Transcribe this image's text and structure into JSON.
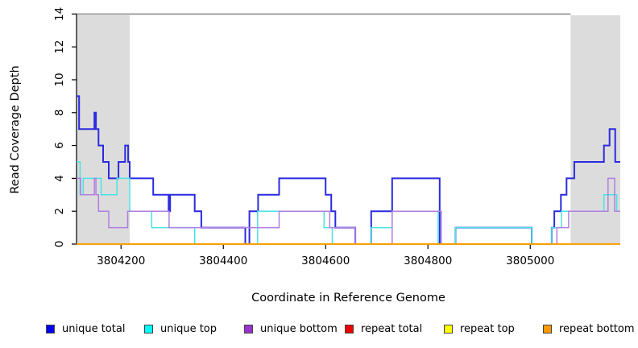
{
  "chart_data": {
    "type": "line",
    "subtype": "step-coverage",
    "title": "",
    "xlabel": "Coordinate in Reference Genome",
    "ylabel": "Read Coverage Depth",
    "xlim": [
      3804113,
      3805176
    ],
    "ylim": [
      0,
      14
    ],
    "xticks": [
      3804200,
      3804400,
      3804600,
      3804800,
      3805000
    ],
    "yticks": [
      0,
      2,
      4,
      6,
      8,
      10,
      12,
      14
    ],
    "grid": false,
    "legend_position": "bottom",
    "shade_color": "#dcdcdc",
    "shaded_regions": [
      {
        "x0": 3804113,
        "x1": 3804217
      },
      {
        "x0": 3805079,
        "x1": 3805176
      }
    ],
    "top_rule": {
      "y": 14,
      "x0": 3804113,
      "x1": 3805079,
      "color": "#8c8c8c"
    },
    "series": [
      {
        "name": "unique total",
        "color": "#2b2be0",
        "width": 2,
        "steps": [
          [
            3804113,
            9
          ],
          [
            3804118,
            7
          ],
          [
            3804148,
            8
          ],
          [
            3804151,
            7
          ],
          [
            3804156,
            6
          ],
          [
            3804165,
            5
          ],
          [
            3804176,
            4
          ],
          [
            3804195,
            5
          ],
          [
            3804208,
            6
          ],
          [
            3804214,
            5
          ],
          [
            3804217,
            4
          ],
          [
            3804263,
            3
          ],
          [
            3804293,
            2
          ],
          [
            3804296,
            3
          ],
          [
            3804344,
            2
          ],
          [
            3804357,
            1
          ],
          [
            3804443,
            0
          ],
          [
            3804451,
            2
          ],
          [
            3804468,
            3
          ],
          [
            3804509,
            4
          ],
          [
            3804600,
            3
          ],
          [
            3804611,
            2
          ],
          [
            3804619,
            1
          ],
          [
            3804658,
            0
          ],
          [
            3804689,
            2
          ],
          [
            3804730,
            4
          ],
          [
            3804823,
            0
          ],
          [
            3804854,
            1
          ],
          [
            3805003,
            0
          ],
          [
            3805042,
            1
          ],
          [
            3805047,
            2
          ],
          [
            3805060,
            3
          ],
          [
            3805071,
            4
          ],
          [
            3805086,
            5
          ],
          [
            3805144,
            6
          ],
          [
            3805155,
            7
          ],
          [
            3805166,
            5
          ]
        ]
      },
      {
        "name": "unique top",
        "color": "#4ae2e2",
        "width": 1.5,
        "steps": [
          [
            3804113,
            5
          ],
          [
            3804120,
            3
          ],
          [
            3804126,
            4
          ],
          [
            3804161,
            3
          ],
          [
            3804192,
            4
          ],
          [
            3804217,
            2
          ],
          [
            3804260,
            1
          ],
          [
            3804344,
            0
          ],
          [
            3804467,
            2
          ],
          [
            3804597,
            1
          ],
          [
            3804613,
            0
          ],
          [
            3804689,
            1
          ],
          [
            3804730,
            2
          ],
          [
            3804820,
            0
          ],
          [
            3804854,
            1
          ],
          [
            3805003,
            0
          ],
          [
            3805042,
            1
          ],
          [
            3805061,
            2
          ],
          [
            3805144,
            3
          ],
          [
            3805169,
            2
          ]
        ]
      },
      {
        "name": "unique bottom",
        "color": "#b07ee0",
        "width": 1.5,
        "steps": [
          [
            3804113,
            4
          ],
          [
            3804121,
            3
          ],
          [
            3804148,
            4
          ],
          [
            3804151,
            3
          ],
          [
            3804156,
            2
          ],
          [
            3804176,
            1
          ],
          [
            3804213,
            2
          ],
          [
            3804294,
            1
          ],
          [
            3804509,
            2
          ],
          [
            3804608,
            1
          ],
          [
            3804658,
            0
          ],
          [
            3804730,
            2
          ],
          [
            3804826,
            0
          ],
          [
            3805052,
            1
          ],
          [
            3805075,
            2
          ],
          [
            3805152,
            4
          ],
          [
            3805165,
            2
          ]
        ]
      },
      {
        "name": "repeat total",
        "color": "#e03030",
        "width": 1.5,
        "steps": [
          [
            3804113,
            0
          ]
        ]
      },
      {
        "name": "repeat top",
        "color": "#f2f200",
        "width": 1.5,
        "steps": [
          [
            3804113,
            0
          ]
        ]
      },
      {
        "name": "repeat bottom",
        "color": "#ff9d00",
        "width": 1.8,
        "steps": [
          [
            3804113,
            0
          ]
        ]
      }
    ],
    "legend": [
      {
        "label": "unique total",
        "color": "#0000ee"
      },
      {
        "label": "unique top",
        "color": "#00ffff"
      },
      {
        "label": "unique bottom",
        "color": "#9932cc"
      },
      {
        "label": "repeat total",
        "color": "#ee0000"
      },
      {
        "label": "repeat top",
        "color": "#ffff00"
      },
      {
        "label": "repeat bottom",
        "color": "#ff9900"
      }
    ]
  }
}
